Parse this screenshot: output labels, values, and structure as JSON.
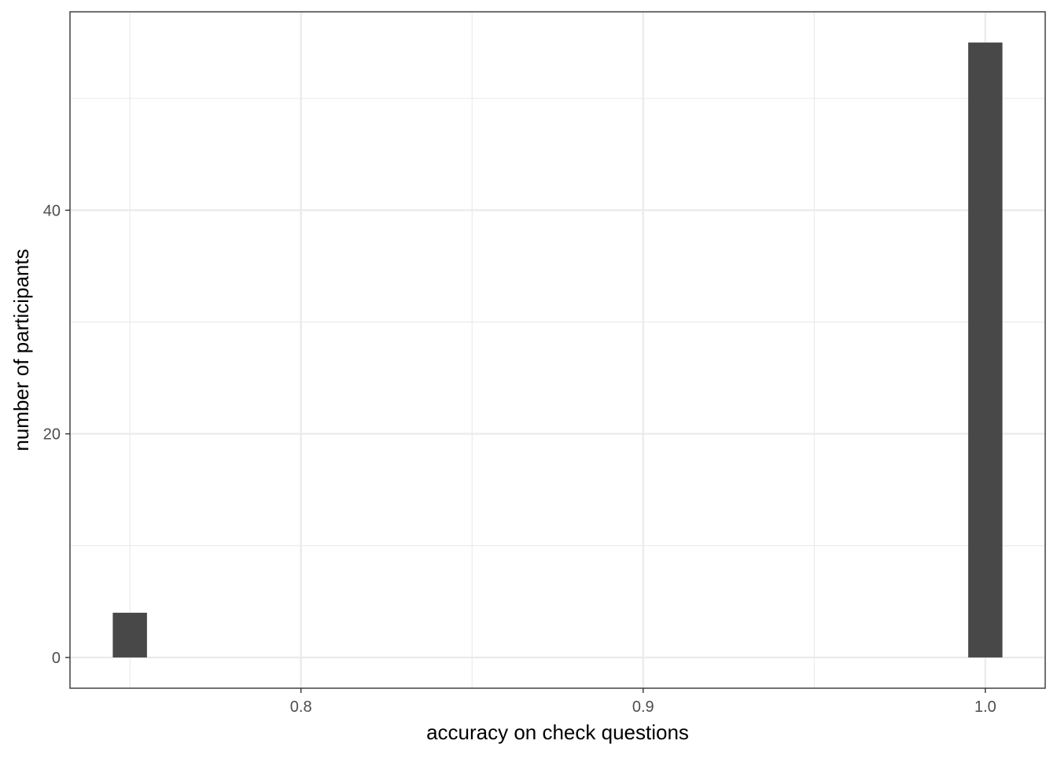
{
  "chart_data": {
    "type": "bar",
    "subtype": "histogram",
    "title": "",
    "xlabel": "accuracy on check questions",
    "ylabel": "number of participants",
    "x_ticks": [
      "0.8",
      "0.9",
      "1.0"
    ],
    "y_ticks": [
      "0",
      "20",
      "40"
    ],
    "xlim": [
      0.7325,
      1.0175
    ],
    "ylim": [
      -2.75,
      57.75
    ],
    "bar_width": 0.01,
    "bars": [
      {
        "x": 0.75,
        "count": 4
      },
      {
        "x": 1.0,
        "count": 55
      }
    ],
    "grid": true,
    "legend": "none",
    "colors": {
      "bar": "#484848",
      "grid": "#ebebeb",
      "panel_border": "#333333",
      "tick_label": "#4d4d4d"
    }
  }
}
